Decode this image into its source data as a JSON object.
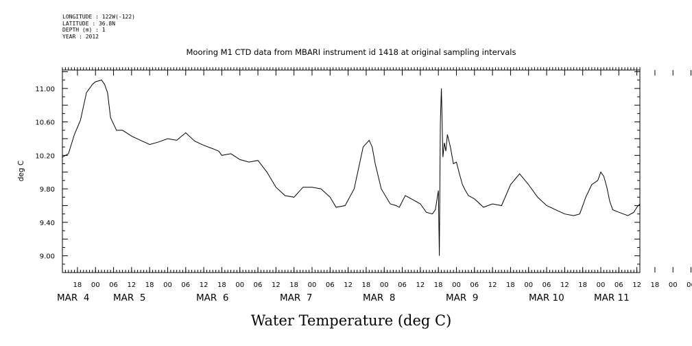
{
  "meta": {
    "longitude": "LONGITUDE : 122W(-122)",
    "latitude": "LATITUDE : 36.8N",
    "depth": "DEPTH (m) : 1",
    "year": "YEAR : 2012"
  },
  "chart_data": {
    "type": "line",
    "title": "Mooring M1 CTD data from MBARI instrument id 1418 at original sampling intervals",
    "xlabel": "Water Temperature (deg C)",
    "ylabel": "deg C",
    "ylim": [
      8.8,
      11.22
    ],
    "xlim": [
      "2012-03-03 13:00",
      "2012-03-11 13:00"
    ],
    "yticks": [
      "9.00",
      "9.40",
      "9.80",
      "10.20",
      "10.60",
      "11.00"
    ],
    "xtick_hours": [
      "18",
      "00",
      "06",
      "12",
      "18",
      "00",
      "06",
      "12",
      "18",
      "00",
      "06",
      "12",
      "18",
      "00",
      "06",
      "12",
      "18",
      "00",
      "06",
      "12",
      "18",
      "00",
      "06",
      "12",
      "18",
      "00",
      "06",
      "12",
      "18",
      "00",
      "06",
      "12",
      "18",
      "00",
      "06",
      "12"
    ],
    "day_labels": [
      "MAR  4",
      "MAR  5",
      "MAR  6",
      "MAR  7",
      "MAR  8",
      "MAR  9",
      "MAR 10",
      "MAR 11"
    ],
    "grid": false,
    "series": [
      {
        "x": [
          "2012-03-03 13:00",
          "2012-03-03 15:00",
          "2012-03-03 17:00",
          "2012-03-03 19:00",
          "2012-03-03 21:00",
          "2012-03-03 23:00",
          "2012-03-04 00:00",
          "2012-03-04 02:00",
          "2012-03-04 03:00",
          "2012-03-04 04:00",
          "2012-03-04 05:00",
          "2012-03-04 07:00",
          "2012-03-04 09:00",
          "2012-03-04 12:00",
          "2012-03-04 15:00",
          "2012-03-04 18:00",
          "2012-03-04 21:00",
          "2012-03-05 00:00",
          "2012-03-05 03:00",
          "2012-03-05 06:00",
          "2012-03-05 09:00",
          "2012-03-05 12:00",
          "2012-03-05 15:00",
          "2012-03-05 17:00",
          "2012-03-05 18:00",
          "2012-03-05 21:00",
          "2012-03-06 00:00",
          "2012-03-06 03:00",
          "2012-03-06 06:00",
          "2012-03-06 09:00",
          "2012-03-06 12:00",
          "2012-03-06 15:00",
          "2012-03-06 18:00",
          "2012-03-06 21:00",
          "2012-03-07 00:00",
          "2012-03-07 03:00",
          "2012-03-07 06:00",
          "2012-03-07 08:00",
          "2012-03-07 11:00",
          "2012-03-07 14:00",
          "2012-03-07 17:00",
          "2012-03-07 19:00",
          "2012-03-07 20:00",
          "2012-03-07 21:00",
          "2012-03-07 23:00",
          "2012-03-08 02:00",
          "2012-03-08 04:00",
          "2012-03-08 05:00",
          "2012-03-08 07:00",
          "2012-03-08 09:00",
          "2012-03-08 12:00",
          "2012-03-08 14:00",
          "2012-03-08 16:00",
          "2012-03-08 17:00",
          "2012-03-08 18:00",
          "2012-03-08 18:20",
          "2012-03-08 18:40",
          "2012-03-08 19:00",
          "2012-03-08 19:30",
          "2012-03-08 20:00",
          "2012-03-08 20:30",
          "2012-03-08 21:00",
          "2012-03-08 22:00",
          "2012-03-08 23:00",
          "2012-03-09 00:00",
          "2012-03-09 01:00",
          "2012-03-09 02:00",
          "2012-03-09 03:00",
          "2012-03-09 04:00",
          "2012-03-09 06:00",
          "2012-03-09 09:00",
          "2012-03-09 12:00",
          "2012-03-09 15:00",
          "2012-03-09 18:00",
          "2012-03-09 21:00",
          "2012-03-10 00:00",
          "2012-03-10 03:00",
          "2012-03-10 06:00",
          "2012-03-10 09:00",
          "2012-03-10 12:00",
          "2012-03-10 15:00",
          "2012-03-10 17:00",
          "2012-03-10 19:00",
          "2012-03-10 21:00",
          "2012-03-10 23:00",
          "2012-03-11 00:00",
          "2012-03-11 01:00",
          "2012-03-11 02:00",
          "2012-03-11 03:00",
          "2012-03-11 04:00",
          "2012-03-11 06:00",
          "2012-03-11 09:00",
          "2012-03-11 11:00",
          "2012-03-11 12:00",
          "2012-03-11 13:00"
        ],
        "values": [
          10.18,
          10.22,
          10.45,
          10.62,
          10.95,
          11.05,
          11.08,
          11.1,
          11.05,
          10.95,
          10.65,
          10.5,
          10.5,
          10.43,
          10.38,
          10.33,
          10.36,
          10.4,
          10.38,
          10.47,
          10.37,
          10.32,
          10.28,
          10.25,
          10.2,
          10.22,
          10.15,
          10.12,
          10.14,
          10.0,
          9.82,
          9.72,
          9.7,
          9.82,
          9.82,
          9.8,
          9.7,
          9.58,
          9.6,
          9.8,
          10.3,
          10.38,
          10.3,
          10.1,
          9.8,
          9.62,
          9.6,
          9.58,
          9.72,
          9.68,
          9.62,
          9.52,
          9.5,
          9.55,
          9.78,
          9.0,
          10.6,
          11.0,
          10.18,
          10.35,
          10.25,
          10.45,
          10.3,
          10.1,
          10.12,
          9.98,
          9.85,
          9.78,
          9.72,
          9.68,
          9.58,
          9.62,
          9.6,
          9.85,
          9.98,
          9.85,
          9.7,
          9.6,
          9.55,
          9.5,
          9.48,
          9.5,
          9.7,
          9.85,
          9.9,
          10.0,
          9.95,
          9.82,
          9.65,
          9.55,
          9.52,
          9.48,
          9.52,
          9.58,
          9.62
        ]
      }
    ]
  }
}
